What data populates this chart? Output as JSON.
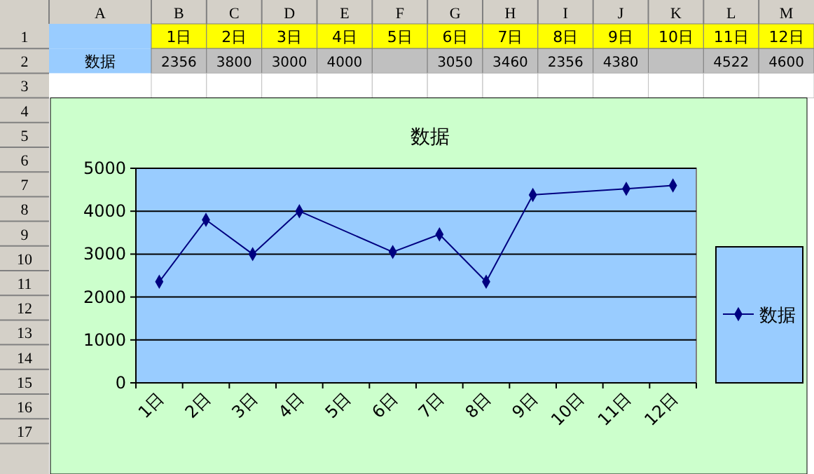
{
  "chart_data": {
    "type": "line",
    "title": "数据",
    "categories": [
      "1日",
      "2日",
      "3日",
      "4日",
      "5日",
      "6日",
      "7日",
      "8日",
      "9日",
      "10日",
      "11日",
      "12日"
    ],
    "series": [
      {
        "name": "数据",
        "color": "#000080",
        "values": [
          2356,
          3800,
          3000,
          4000,
          null,
          3050,
          3460,
          2356,
          4380,
          null,
          4522,
          4600
        ]
      }
    ],
    "value_labels": [
      "2356",
      "3800",
      "3000",
      "4000",
      null,
      "3050",
      "3460",
      "2356",
      "4380",
      null,
      "4522",
      "4600"
    ],
    "ylim": [
      0,
      5000
    ],
    "yticks": [
      0,
      1000,
      2000,
      3000,
      4000,
      5000
    ],
    "grid": "y",
    "legend": "right",
    "marker": "diamond",
    "annotations": [
      "A",
      "B",
      "C",
      "D",
      "E",
      "F",
      "G",
      "H",
      "I",
      "J",
      "K",
      "L",
      "M",
      "1",
      "2",
      "3",
      "4",
      "5",
      "6",
      "7",
      "8",
      "9",
      "10",
      "11",
      "12",
      "13",
      "14",
      "15",
      "16",
      "17"
    ]
  }
}
